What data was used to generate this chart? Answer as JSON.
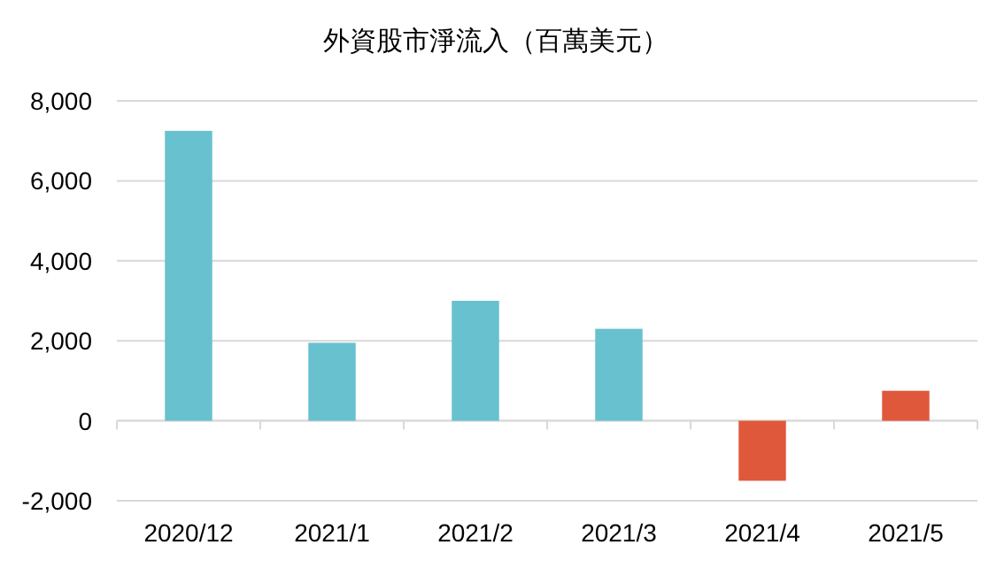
{
  "chart_data": {
    "type": "bar",
    "title": "外資股市淨流入（百萬美元）",
    "categories": [
      "2020/12",
      "2021/1",
      "2021/2",
      "2021/3",
      "2021/4",
      "2021/5"
    ],
    "values": [
      7250,
      1950,
      3000,
      2300,
      -1500,
      750
    ],
    "colors": [
      "#68c1cf",
      "#68c1cf",
      "#68c1cf",
      "#68c1cf",
      "#e0583c",
      "#e0583c"
    ],
    "ylim": [
      -2000,
      8000
    ],
    "yticks": [
      {
        "value": -2000,
        "label": "-2,000"
      },
      {
        "value": 0,
        "label": "0"
      },
      {
        "value": 2000,
        "label": "2,000"
      },
      {
        "value": 4000,
        "label": "4,000"
      },
      {
        "value": 6000,
        "label": "6,000"
      },
      {
        "value": 8000,
        "label": "8,000"
      }
    ],
    "grid": "y"
  }
}
